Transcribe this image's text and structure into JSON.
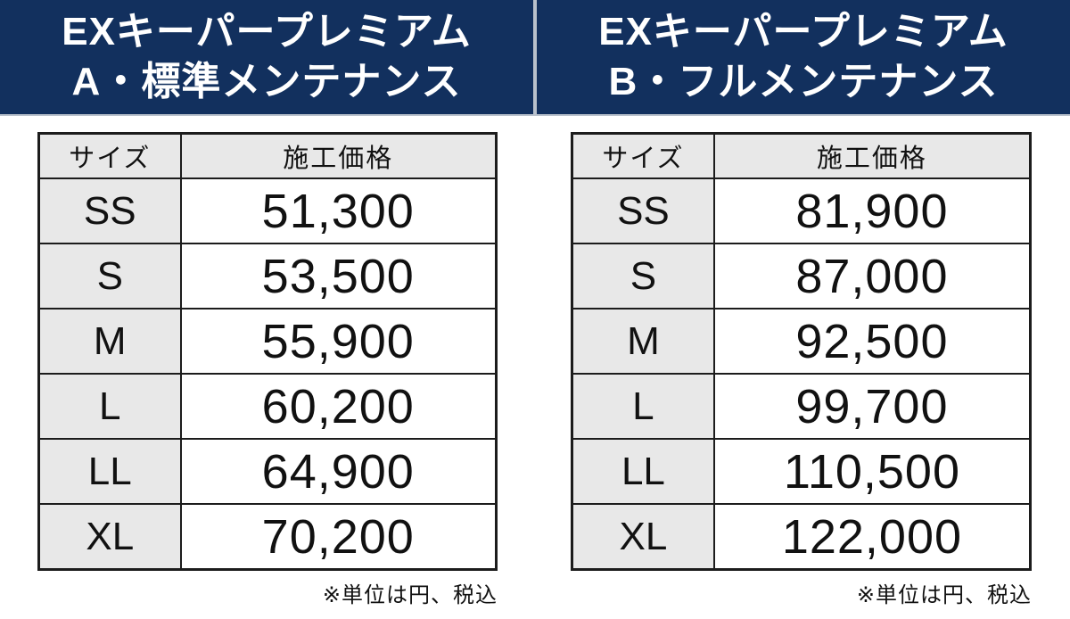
{
  "colors": {
    "banner_navy": "#12305e",
    "banner_edge_gray": "#b9c1cc",
    "cell_gray": "#e8e8e8",
    "border_black": "#1c1c1c",
    "text_white": "#ffffff",
    "text_black": "#111111"
  },
  "panels": [
    {
      "title_line1": "EXキーパープレミアム",
      "title_line2": "A・標準メンテナンス",
      "table": {
        "headers": [
          "サイズ",
          "施工価格"
        ],
        "rows": [
          [
            "SS",
            "51,300"
          ],
          [
            "S",
            "53,500"
          ],
          [
            "M",
            "55,900"
          ],
          [
            "L",
            "60,200"
          ],
          [
            "LL",
            "64,900"
          ],
          [
            "XL",
            "70,200"
          ]
        ]
      },
      "footnote": "※単位は円、税込"
    },
    {
      "title_line1": "EXキーパープレミアム",
      "title_line2": "B・フルメンテナンス",
      "table": {
        "headers": [
          "サイズ",
          "施工価格"
        ],
        "rows": [
          [
            "SS",
            "81,900"
          ],
          [
            "S",
            "87,000"
          ],
          [
            "M",
            "92,500"
          ],
          [
            "L",
            "99,700"
          ],
          [
            "LL",
            "110,500"
          ],
          [
            "XL",
            "122,000"
          ]
        ]
      },
      "footnote": "※単位は円、税込"
    }
  ]
}
